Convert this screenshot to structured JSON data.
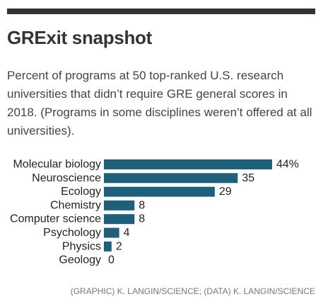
{
  "header": {
    "title": "GRExit snapshot",
    "subtitle": "Percent of programs at 50 top-ranked U.S. research universities that didn’t require GRE general scores in 2018. (Programs in some disciplines weren’t offered at all universities)."
  },
  "chart_data": {
    "type": "bar",
    "orientation": "horizontal",
    "categories": [
      "Molecular biology",
      "Neuroscience",
      "Ecology",
      "Chemistry",
      "Computer science",
      "Psychology",
      "Physics",
      "Geology"
    ],
    "values": [
      44,
      35,
      29,
      8,
      8,
      4,
      2,
      0
    ],
    "value_labels": [
      "44%",
      "35",
      "29",
      "8",
      "8",
      "4",
      "2",
      "0"
    ],
    "xlim": [
      0,
      44
    ],
    "grid": false,
    "bar_color": "#1e5f7a"
  },
  "footer": {
    "credit": "(GRAPHIC) K. LANGIN/SCIENCE; (DATA) K. LANGIN/SCIENCE"
  }
}
